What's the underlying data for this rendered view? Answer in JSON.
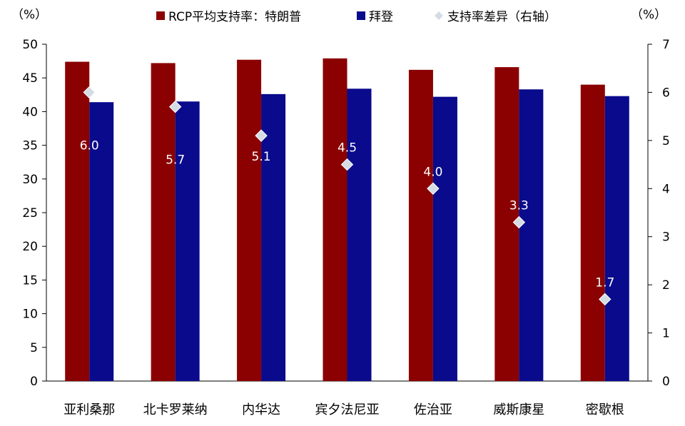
{
  "chart_data": {
    "type": "bar",
    "categories": [
      "亚利桑那",
      "北卡罗莱纳",
      "内华达",
      "宾夕法尼亚",
      "佐治亚",
      "威斯康星",
      "密歇根"
    ],
    "series": [
      {
        "name": "RCP平均支持率：特朗普",
        "values": [
          47.4,
          47.2,
          47.7,
          47.9,
          46.2,
          46.6,
          44.0
        ],
        "color": "#8B0000",
        "axis": "left"
      },
      {
        "name": "拜登",
        "values": [
          41.4,
          41.5,
          42.6,
          43.4,
          42.2,
          43.3,
          42.3
        ],
        "color": "#0A0A8C",
        "axis": "left"
      },
      {
        "name": "支持率差异（右轴）",
        "values": [
          6.0,
          5.7,
          5.1,
          4.5,
          4.0,
          3.3,
          1.7
        ],
        "color": "#D6DCE4",
        "axis": "right",
        "marker": "diamond"
      }
    ],
    "diff_labels": [
      "6.0",
      "5.7",
      "5.1",
      "4.5",
      "4.0",
      "3.3",
      "1.7"
    ],
    "left_axis": {
      "unit_label": "（%）",
      "ylim": [
        0,
        50
      ],
      "ticks": [
        "0",
        "5",
        "10",
        "15",
        "20",
        "25",
        "30",
        "35",
        "40",
        "45",
        "50"
      ]
    },
    "right_axis": {
      "unit_label": "（%）",
      "ylim": [
        0,
        7
      ],
      "ticks": [
        "0",
        "1",
        "2",
        "3",
        "4",
        "5",
        "6",
        "7"
      ]
    },
    "grid": false,
    "legend_position": "top"
  }
}
